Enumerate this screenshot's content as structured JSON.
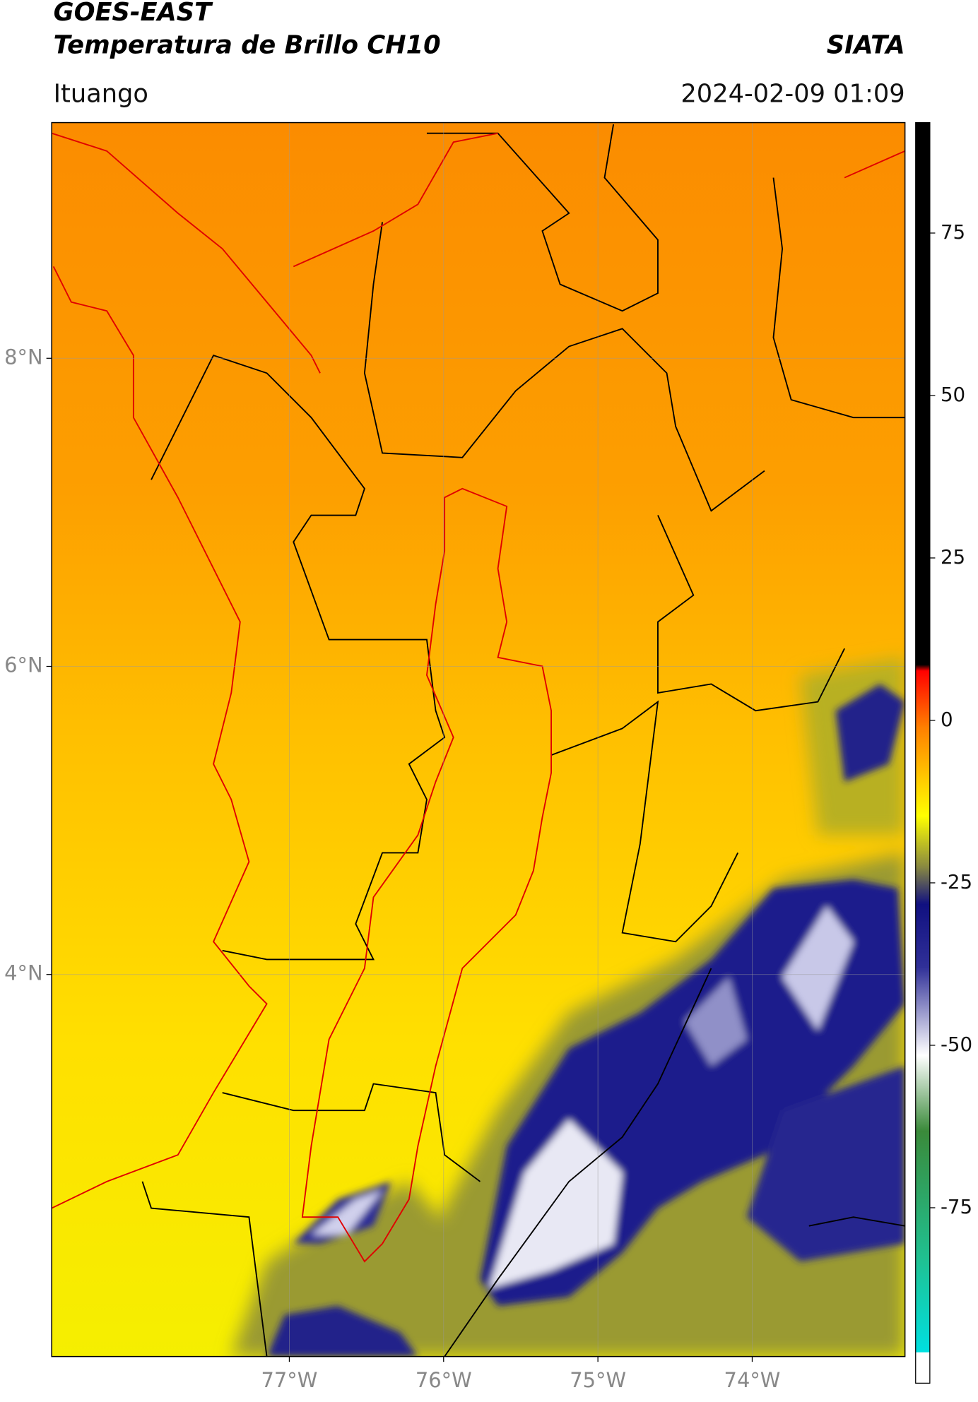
{
  "header": {
    "title": "GOES-EAST",
    "subtitle": "Temperatura de Brillo CH10",
    "source": "SIATA",
    "location": "Ituango",
    "datetime": "2024-02-09 01:09"
  },
  "map": {
    "xlim": [
      -78.54,
      -73.01
    ],
    "ylim": [
      1.52,
      9.53
    ],
    "xticks": [
      {
        "value": -77,
        "label": "77°W"
      },
      {
        "value": -76,
        "label": "76°W"
      },
      {
        "value": -75,
        "label": "75°W"
      },
      {
        "value": -74,
        "label": "74°W"
      }
    ],
    "yticks": [
      {
        "value": 8,
        "label": "8°N"
      },
      {
        "value": 6,
        "label": "6°N"
      },
      {
        "value": 4,
        "label": "4°N"
      }
    ],
    "grid": true
  },
  "colorbar": {
    "range": [
      -102,
      92
    ],
    "ticks": [
      75,
      50,
      25,
      0,
      -25,
      -50,
      -75
    ]
  }
}
